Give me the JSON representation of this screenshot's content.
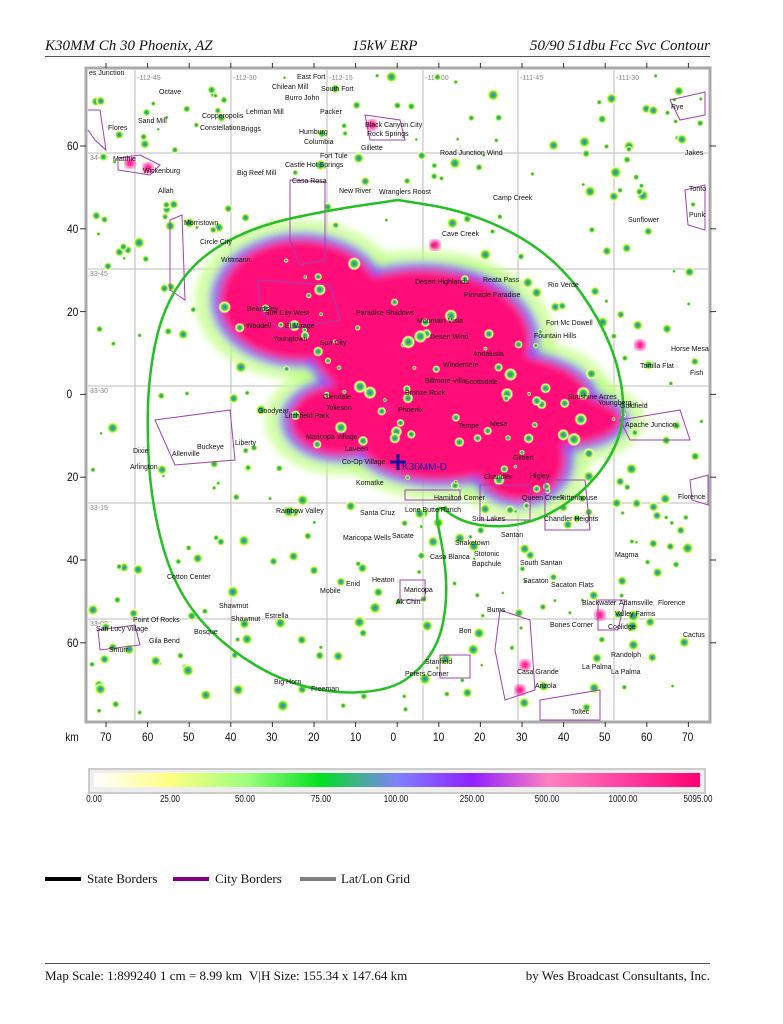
{
  "header": {
    "station": "K30MM Ch 30 Phoenix, AZ",
    "power": "15kW ERP",
    "contour": "50/90 51dbu Fcc Svc Contour"
  },
  "map": {
    "transmitter_label": "K30MM-D",
    "contour_color": "#22c022",
    "city_border_color": "#a040b0",
    "grid_labels": {
      "longitude": [
        "-112-45",
        "-112-30",
        "-112-15",
        "-112-00",
        "-111-45",
        "-111-30"
      ],
      "latitude": [
        "34-00",
        "33-45",
        "33-30",
        "33-15",
        "33-00"
      ]
    },
    "y_axis_km": [
      "60",
      "40",
      "20",
      "0",
      "20",
      "40",
      "60"
    ],
    "x_axis_unit": "km",
    "x_axis_km": [
      "70",
      "60",
      "50",
      "40",
      "30",
      "20",
      "10",
      "0",
      "10",
      "20",
      "30",
      "40",
      "50",
      "60",
      "70"
    ],
    "places": [
      "es Junction",
      "Octave",
      "Sand Mill",
      "Flores",
      "Copperopolis",
      "Constellation",
      "Briggs",
      "Lehman Mill",
      "East Fort",
      "Chilean Mill",
      "South Fort",
      "Burro John",
      "Packer",
      "Humburg",
      "Columbia",
      "Black Canyon City",
      "Rock Springs",
      "Gillette",
      "Fort Tule",
      "Castle Hot Springs",
      "Big Reef Mill",
      "Casa Rosa",
      "Matthie",
      "Wickenburg",
      "Allah",
      "New River",
      "Wranglers Roost",
      "Road Junction Wind",
      "Camp Creek",
      "Rye",
      "Jakes",
      "Tonto",
      "Sunflower",
      "Punk",
      "Morristown",
      "Circle City",
      "Wittmann",
      "Cave Creek",
      "Desert Highlands",
      "Reata Pass",
      "Pinnacle Paradise",
      "Rio Verde",
      "Fort Mc Dowell",
      "Fountain Hills",
      "Horse Mesa",
      "Tortilla Flat",
      "Fish",
      "Goldfield",
      "Beardsley",
      "Sun City West",
      "Waddell",
      "El Mirage",
      "Youngtown",
      "Sun City",
      "Paradise Shadows",
      "Mountain Vista",
      "Desert Wind",
      "Andalusia",
      "Windemere",
      "Scottsdale",
      "Biltmore Villa",
      "Bronze Rock",
      "Glendale",
      "Phoenix",
      "Tolleson",
      "Litchfield Park",
      "Goodyear",
      "Tempe",
      "Mesa",
      "Gilbert",
      "Higley",
      "Chandler",
      "Sunshine Acres",
      "Youngberg",
      "Apache Junction",
      "Maricopa Village",
      "Laveen",
      "Co-Op Village",
      "Komatke",
      "Liberty",
      "Buckeye",
      "Dixie",
      "Allenville",
      "Arlington",
      "Rainbow Valley",
      "Santa Cruz",
      "Lone Butte Ranch",
      "Hamilton Corner",
      "Queen Creek",
      "Rittenhouse",
      "Chandler Heights",
      "Sun Lakes",
      "Maricopa Wells",
      "Sacate",
      "Snaketown",
      "Santan",
      "Stotonic",
      "Bapchule",
      "Casa Blanca",
      "South Santan",
      "Sacaton",
      "Sacaton Flats",
      "Magma",
      "Cotton Center",
      "Enid",
      "Heaton",
      "Maricopa",
      "Mobile",
      "Ak Chin",
      "Shawmut",
      "Shawmut",
      "Estrella",
      "Point Of Rocks",
      "San Lucy Village",
      "Gila Bend",
      "Smurr",
      "Bosque",
      "Big Horn",
      "Freeman",
      "Stanfield",
      "Peters Corner",
      "Bon",
      "Burns",
      "Casa Grande",
      "Arizola",
      "Toltec",
      "La Palma",
      "La Palma",
      "Randolph",
      "Coolidge",
      "Valley Farms",
      "Blackwater",
      "Adamsville",
      "Florence",
      "Bones Corner",
      "Cactus",
      "Florence"
    ]
  },
  "colorbar": {
    "labels": [
      "0.00",
      "25.00",
      "50.00",
      "75.00",
      "100.00",
      "250.00",
      "500.00",
      "1000.00",
      "5095.00"
    ],
    "colors": [
      "#ffffff",
      "#ffff80",
      "#a0ff80",
      "#00e020",
      "#8080ff",
      "#9020ff",
      "#ff80c0",
      "#ff40a0",
      "#ff0070"
    ]
  },
  "legend": {
    "items": [
      {
        "label": "State Borders",
        "color": "#000000"
      },
      {
        "label": "City Borders",
        "color": "#800080"
      },
      {
        "label": "Lat/Lon Grid",
        "color": "#808080"
      }
    ]
  },
  "footer": {
    "scale": "Map Scale: 1:899240",
    "cm": "1 cm = 8.99 km",
    "size": "V|H Size: 155.34 x 147.64 km",
    "credit": "by Wes Broadcast Consultants, Inc."
  }
}
